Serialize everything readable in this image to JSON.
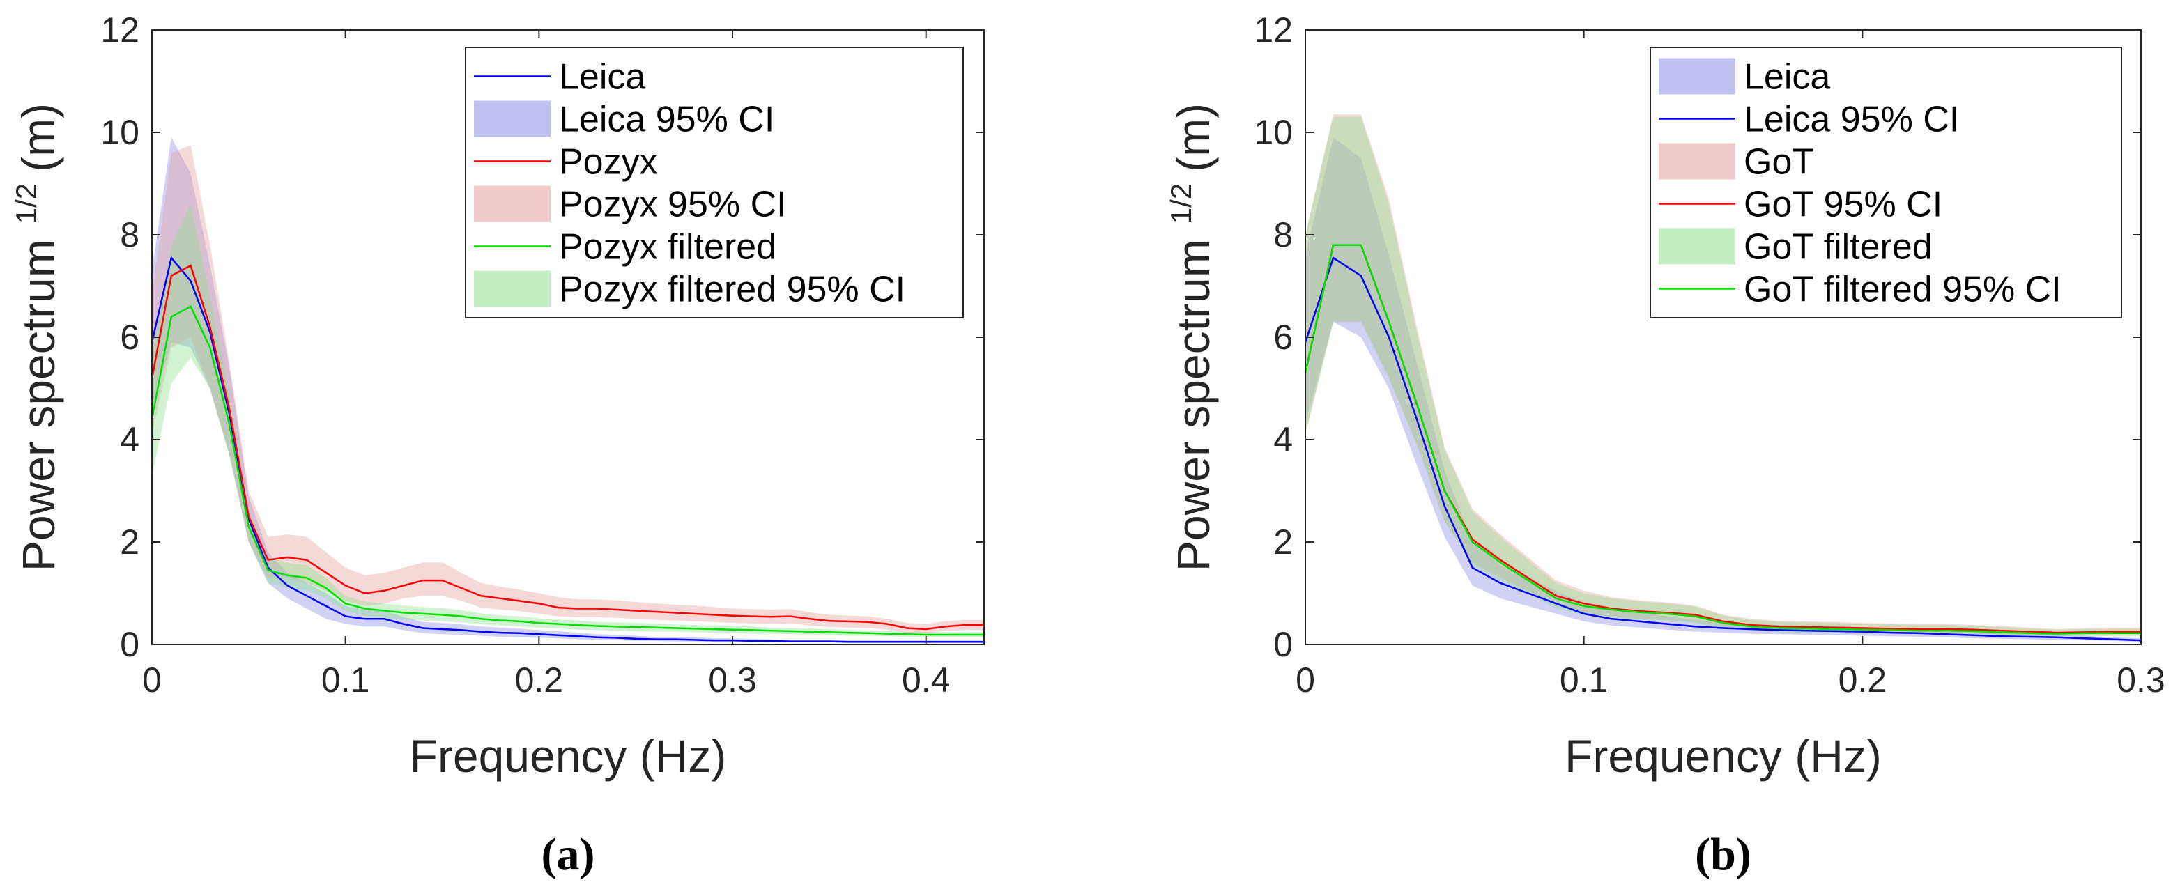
{
  "chart_data": [
    {
      "type": "line",
      "panel_label": "(a)",
      "xlabel": "Frequency (Hz)",
      "ylabel_main": "Power spectrum",
      "ylabel_sup": "1/2",
      "ylabel_unit": "(m)",
      "xlim": [
        0,
        0.43
      ],
      "ylim": [
        0,
        12
      ],
      "xticks": [
        0,
        0.1,
        0.2,
        0.3,
        0.4
      ],
      "xtick_labels": [
        "0",
        "0.1",
        "0.2",
        "0.3",
        "0.4"
      ],
      "yticks": [
        0,
        2,
        4,
        6,
        8,
        10,
        12
      ],
      "ytick_labels": [
        "0",
        "2",
        "4",
        "6",
        "8",
        "10",
        "12"
      ],
      "legend_position": "top-right",
      "x": [
        0,
        0.01,
        0.02,
        0.03,
        0.04,
        0.05,
        0.06,
        0.07,
        0.08,
        0.09,
        0.1,
        0.11,
        0.12,
        0.13,
        0.14,
        0.15,
        0.16,
        0.17,
        0.18,
        0.19,
        0.2,
        0.21,
        0.22,
        0.23,
        0.24,
        0.25,
        0.26,
        0.27,
        0.28,
        0.29,
        0.3,
        0.31,
        0.32,
        0.33,
        0.34,
        0.35,
        0.36,
        0.37,
        0.38,
        0.39,
        0.4,
        0.41,
        0.42,
        0.43
      ],
      "series": [
        {
          "name": "Leica",
          "ci_name": "Leica 95% CI",
          "legend_order": [
            "line",
            "band"
          ],
          "color": "#0000ff",
          "band_color": "#8c8ce6",
          "values": [
            5.9,
            7.55,
            7.1,
            6.1,
            4.5,
            2.45,
            1.5,
            1.15,
            0.95,
            0.75,
            0.55,
            0.5,
            0.5,
            0.4,
            0.32,
            0.3,
            0.28,
            0.25,
            0.23,
            0.22,
            0.2,
            0.18,
            0.16,
            0.14,
            0.13,
            0.11,
            0.1,
            0.1,
            0.09,
            0.08,
            0.08,
            0.07,
            0.07,
            0.06,
            0.06,
            0.06,
            0.05,
            0.05,
            0.05,
            0.05,
            0.05,
            0.05,
            0.05,
            0.05
          ],
          "lower": [
            4.6,
            5.9,
            5.8,
            5.0,
            3.7,
            2.0,
            1.2,
            0.9,
            0.7,
            0.5,
            0.4,
            0.35,
            0.35,
            0.28,
            0.22,
            0.2,
            0.19,
            0.17,
            0.15,
            0.14,
            0.13,
            0.12,
            0.1,
            0.09,
            0.08,
            0.07,
            0.07,
            0.06,
            0.06,
            0.05,
            0.05,
            0.05,
            0.04,
            0.04,
            0.04,
            0.04,
            0.03,
            0.03,
            0.03,
            0.03,
            0.03,
            0.03,
            0.03,
            0.03
          ],
          "upper": [
            7.3,
            9.9,
            9.2,
            7.4,
            5.4,
            2.9,
            1.8,
            1.4,
            1.2,
            1.0,
            0.75,
            0.68,
            0.66,
            0.54,
            0.44,
            0.42,
            0.39,
            0.35,
            0.33,
            0.31,
            0.28,
            0.26,
            0.23,
            0.2,
            0.19,
            0.17,
            0.15,
            0.15,
            0.14,
            0.12,
            0.12,
            0.11,
            0.1,
            0.09,
            0.09,
            0.09,
            0.08,
            0.08,
            0.08,
            0.08,
            0.08,
            0.08,
            0.08,
            0.08
          ]
        },
        {
          "name": "Pozyx",
          "ci_name": "Pozyx  95% CI",
          "legend_order": [
            "line",
            "band"
          ],
          "color": "#ff0000",
          "band_color": "#e6a0a0",
          "values": [
            5.2,
            7.2,
            7.4,
            6.2,
            4.6,
            2.5,
            1.65,
            1.7,
            1.65,
            1.4,
            1.15,
            1.0,
            1.05,
            1.15,
            1.25,
            1.25,
            1.1,
            0.95,
            0.9,
            0.85,
            0.8,
            0.72,
            0.7,
            0.7,
            0.68,
            0.66,
            0.64,
            0.62,
            0.6,
            0.58,
            0.56,
            0.55,
            0.54,
            0.55,
            0.5,
            0.46,
            0.45,
            0.44,
            0.4,
            0.32,
            0.3,
            0.35,
            0.38,
            0.38
          ],
          "lower": [
            4.1,
            5.8,
            6.0,
            5.0,
            3.7,
            2.0,
            1.3,
            1.3,
            1.2,
            1.05,
            0.85,
            0.75,
            0.8,
            0.9,
            0.95,
            0.95,
            0.85,
            0.72,
            0.68,
            0.65,
            0.6,
            0.55,
            0.53,
            0.53,
            0.52,
            0.5,
            0.48,
            0.47,
            0.45,
            0.44,
            0.42,
            0.41,
            0.4,
            0.41,
            0.37,
            0.34,
            0.33,
            0.32,
            0.29,
            0.23,
            0.22,
            0.26,
            0.28,
            0.28
          ],
          "upper": [
            6.8,
            9.6,
            9.75,
            7.8,
            5.5,
            3.0,
            2.1,
            2.15,
            2.1,
            1.8,
            1.5,
            1.35,
            1.4,
            1.5,
            1.6,
            1.6,
            1.4,
            1.2,
            1.13,
            1.07,
            1.0,
            0.92,
            0.88,
            0.88,
            0.86,
            0.83,
            0.8,
            0.78,
            0.76,
            0.73,
            0.7,
            0.69,
            0.68,
            0.69,
            0.63,
            0.58,
            0.56,
            0.55,
            0.5,
            0.42,
            0.4,
            0.45,
            0.48,
            0.48
          ]
        },
        {
          "name": "Pozyx filtered",
          "ci_name": "Pozyx filtered 95% CI",
          "legend_order": [
            "line",
            "band"
          ],
          "color": "#00e000",
          "band_color": "#8ee08e",
          "values": [
            4.4,
            6.4,
            6.6,
            5.8,
            4.3,
            2.3,
            1.45,
            1.35,
            1.3,
            1.1,
            0.8,
            0.7,
            0.66,
            0.62,
            0.6,
            0.58,
            0.55,
            0.5,
            0.47,
            0.45,
            0.42,
            0.4,
            0.38,
            0.36,
            0.35,
            0.34,
            0.33,
            0.32,
            0.31,
            0.3,
            0.29,
            0.28,
            0.27,
            0.26,
            0.25,
            0.24,
            0.23,
            0.22,
            0.21,
            0.2,
            0.19,
            0.19,
            0.19,
            0.19
          ],
          "lower": [
            3.3,
            5.1,
            5.6,
            5.0,
            3.7,
            2.0,
            1.2,
            1.1,
            1.05,
            0.9,
            0.65,
            0.56,
            0.52,
            0.49,
            0.47,
            0.45,
            0.43,
            0.39,
            0.37,
            0.35,
            0.33,
            0.31,
            0.29,
            0.28,
            0.27,
            0.26,
            0.25,
            0.25,
            0.24,
            0.23,
            0.22,
            0.21,
            0.21,
            0.2,
            0.19,
            0.18,
            0.17,
            0.17,
            0.16,
            0.15,
            0.14,
            0.14,
            0.14,
            0.14
          ],
          "upper": [
            5.6,
            7.8,
            8.6,
            6.8,
            4.9,
            2.6,
            1.7,
            1.6,
            1.55,
            1.3,
            0.95,
            0.84,
            0.8,
            0.76,
            0.73,
            0.71,
            0.67,
            0.61,
            0.57,
            0.55,
            0.51,
            0.49,
            0.47,
            0.44,
            0.43,
            0.42,
            0.41,
            0.39,
            0.38,
            0.37,
            0.36,
            0.35,
            0.33,
            0.32,
            0.31,
            0.3,
            0.29,
            0.27,
            0.26,
            0.25,
            0.24,
            0.24,
            0.24,
            0.24
          ]
        }
      ]
    },
    {
      "type": "line",
      "panel_label": "(b)",
      "xlabel": "Frequency (Hz)",
      "ylabel_main": "Power spectrum",
      "ylabel_sup": "1/2",
      "ylabel_unit": "(m)",
      "xlim": [
        0,
        0.3
      ],
      "ylim": [
        0,
        12
      ],
      "xticks": [
        0,
        0.1,
        0.2,
        0.3
      ],
      "xtick_labels": [
        "0",
        "0.1",
        "0.2",
        "0.3"
      ],
      "yticks": [
        0,
        2,
        4,
        6,
        8,
        10,
        12
      ],
      "ytick_labels": [
        "0",
        "2",
        "4",
        "6",
        "8",
        "10",
        "12"
      ],
      "legend_position": "top-right",
      "x": [
        0,
        0.01,
        0.02,
        0.03,
        0.04,
        0.05,
        0.06,
        0.07,
        0.08,
        0.09,
        0.1,
        0.11,
        0.12,
        0.13,
        0.14,
        0.15,
        0.16,
        0.17,
        0.18,
        0.19,
        0.2,
        0.21,
        0.22,
        0.23,
        0.24,
        0.25,
        0.26,
        0.27,
        0.28,
        0.29,
        0.3
      ],
      "series": [
        {
          "name": "Leica 95% CI",
          "ci_name": "Leica",
          "legend_order": [
            "band",
            "line"
          ],
          "color": "#0000ff",
          "band_color": "#8c8ce6",
          "values": [
            5.9,
            7.55,
            7.2,
            6.0,
            4.4,
            2.7,
            1.5,
            1.2,
            1.0,
            0.8,
            0.6,
            0.5,
            0.45,
            0.4,
            0.35,
            0.32,
            0.3,
            0.28,
            0.27,
            0.26,
            0.25,
            0.23,
            0.22,
            0.2,
            0.18,
            0.16,
            0.15,
            0.14,
            0.12,
            0.1,
            0.08
          ],
          "lower": [
            4.3,
            6.3,
            6.0,
            5.0,
            3.5,
            2.1,
            1.15,
            0.9,
            0.75,
            0.6,
            0.45,
            0.37,
            0.33,
            0.29,
            0.25,
            0.23,
            0.21,
            0.2,
            0.19,
            0.18,
            0.17,
            0.16,
            0.15,
            0.14,
            0.12,
            0.11,
            0.1,
            0.09,
            0.08,
            0.07,
            0.05
          ],
          "upper": [
            7.6,
            9.9,
            9.5,
            7.6,
            5.5,
            3.4,
            2.0,
            1.55,
            1.3,
            1.05,
            0.8,
            0.68,
            0.62,
            0.55,
            0.48,
            0.44,
            0.41,
            0.38,
            0.37,
            0.36,
            0.34,
            0.32,
            0.3,
            0.28,
            0.25,
            0.22,
            0.21,
            0.2,
            0.17,
            0.14,
            0.12
          ]
        },
        {
          "name": "GoT  95% CI",
          "ci_name": "GoT",
          "legend_order": [
            "band",
            "line"
          ],
          "color": "#ff0000",
          "band_color": "#e6a0a0",
          "values": [
            5.3,
            7.8,
            7.8,
            6.3,
            4.7,
            3.0,
            2.05,
            1.65,
            1.3,
            0.95,
            0.8,
            0.7,
            0.65,
            0.62,
            0.58,
            0.45,
            0.38,
            0.35,
            0.34,
            0.33,
            0.32,
            0.31,
            0.3,
            0.3,
            0.29,
            0.27,
            0.25,
            0.23,
            0.24,
            0.25,
            0.25
          ],
          "lower": [
            4.1,
            6.3,
            6.3,
            5.2,
            3.9,
            2.4,
            1.6,
            1.3,
            1.05,
            0.75,
            0.62,
            0.54,
            0.5,
            0.48,
            0.44,
            0.34,
            0.29,
            0.27,
            0.26,
            0.25,
            0.24,
            0.23,
            0.22,
            0.22,
            0.21,
            0.2,
            0.18,
            0.17,
            0.18,
            0.18,
            0.18
          ],
          "upper": [
            8.0,
            10.35,
            10.35,
            8.7,
            6.2,
            3.85,
            2.65,
            2.15,
            1.7,
            1.25,
            1.05,
            0.92,
            0.86,
            0.82,
            0.76,
            0.58,
            0.5,
            0.46,
            0.45,
            0.44,
            0.42,
            0.41,
            0.4,
            0.4,
            0.38,
            0.36,
            0.33,
            0.3,
            0.32,
            0.33,
            0.33
          ]
        },
        {
          "name": "GoT filtered 95% CI",
          "ci_name": "GoT filtered",
          "legend_order": [
            "band",
            "line"
          ],
          "color": "#00e000",
          "band_color": "#8ee08e",
          "values": [
            5.3,
            7.8,
            7.8,
            6.3,
            4.7,
            3.0,
            2.0,
            1.6,
            1.25,
            0.9,
            0.75,
            0.68,
            0.63,
            0.6,
            0.55,
            0.42,
            0.35,
            0.32,
            0.31,
            0.3,
            0.29,
            0.28,
            0.27,
            0.27,
            0.26,
            0.24,
            0.22,
            0.21,
            0.22,
            0.22,
            0.22
          ],
          "lower": [
            4.1,
            6.3,
            6.3,
            5.2,
            3.9,
            2.4,
            1.55,
            1.25,
            1.0,
            0.7,
            0.58,
            0.52,
            0.48,
            0.46,
            0.42,
            0.32,
            0.27,
            0.24,
            0.23,
            0.23,
            0.22,
            0.21,
            0.2,
            0.2,
            0.19,
            0.18,
            0.16,
            0.16,
            0.16,
            0.16,
            0.16
          ],
          "upper": [
            8.0,
            10.3,
            10.3,
            8.6,
            6.1,
            3.8,
            2.6,
            2.1,
            1.65,
            1.2,
            1.0,
            0.9,
            0.84,
            0.8,
            0.74,
            0.56,
            0.48,
            0.44,
            0.43,
            0.42,
            0.4,
            0.39,
            0.38,
            0.38,
            0.36,
            0.34,
            0.31,
            0.29,
            0.3,
            0.3,
            0.3
          ]
        }
      ]
    }
  ]
}
